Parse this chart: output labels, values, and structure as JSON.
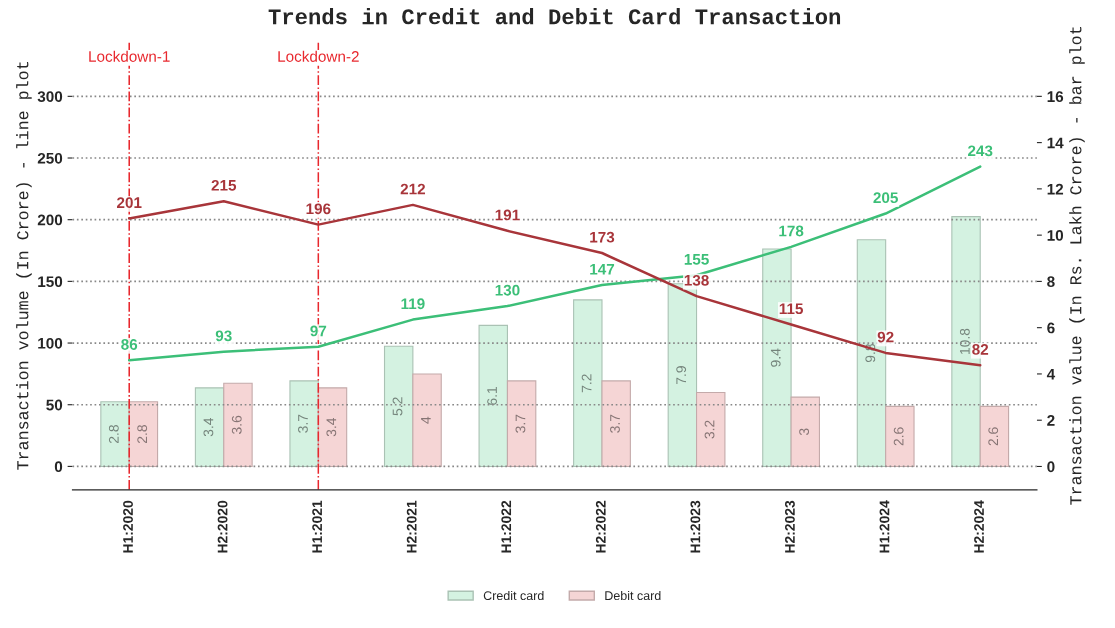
{
  "chart_data": {
    "type": "bar",
    "title": "Trends in Credit and Debit Card Transaction",
    "ylabel": "Transaction volume (In Crore) - line plot",
    "y2label": "Transaction value (In Rs. Lakh Crore) - bar plot",
    "categories": [
      "H1:2020",
      "H2:2020",
      "H1:2021",
      "H2:2021",
      "H1:2022",
      "H2:2022",
      "H1:2023",
      "H2:2023",
      "H1:2024",
      "H2:2024"
    ],
    "series": [
      {
        "name": "Credit card",
        "axis": "y2",
        "color": "#d4f2e1",
        "values": [
          2.8,
          3.4,
          3.7,
          5.2,
          6.1,
          7.2,
          7.9,
          9.4,
          9.8,
          10.8
        ]
      },
      {
        "name": "Debit card",
        "axis": "y2",
        "color": "#f5d5d5",
        "values": [
          2.8,
          3.6,
          3.4,
          4,
          3.7,
          3.7,
          3.2,
          3,
          2.6,
          2.6
        ]
      },
      {
        "type": "line",
        "axis": "y",
        "color": "#3cbf78",
        "values": [
          86,
          93,
          97,
          119,
          130,
          147,
          155,
          178,
          205,
          243
        ]
      },
      {
        "type": "line",
        "axis": "y",
        "color": "#a8353a",
        "values": [
          201,
          215,
          196,
          212,
          191,
          173,
          138,
          115,
          92,
          82
        ]
      }
    ],
    "ylim": [
      -19,
      345
    ],
    "yticks": [
      0,
      50,
      100,
      150,
      200,
      250,
      300
    ],
    "y2lim": [
      -1.01,
      18.4
    ],
    "y2ticks": [
      0,
      2,
      4,
      6,
      8,
      10,
      12,
      14,
      16
    ],
    "ref_lines": [
      {
        "axis": "x",
        "value": "H1:2020",
        "label": "Lockdown-1",
        "color": "#e8282e",
        "line_style": "dashdot"
      },
      {
        "axis": "x",
        "value": "H1:2021",
        "label": "Lockdown-2",
        "color": "#e8282e",
        "line_style": "dashdot"
      }
    ],
    "data_labels": true,
    "grid": "y",
    "legend": "bottom"
  }
}
